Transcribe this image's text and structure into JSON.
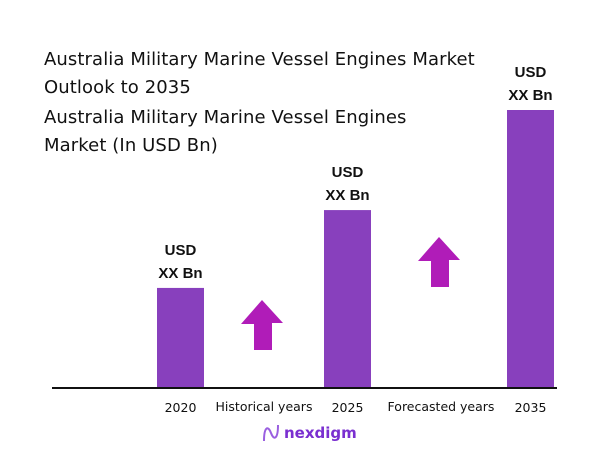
{
  "title_lines": [
    "Australia Military Marine Vessel Engines Market",
    "Outlook to 2035"
  ],
  "subtitle_lines": [
    "Australia Military Marine Vessel Engines",
    "Market (In USD Bn)"
  ],
  "chart_data": {
    "type": "bar",
    "title": "Australia Military Marine Vessel Engines Market Outlook to 2035",
    "subtitle": "Australia Military Marine Vessel Engines Market (In USD Bn)",
    "categories": [
      "2020",
      "2025",
      "2035"
    ],
    "values_relative_percent": [
      36,
      64,
      100
    ],
    "data_labels": [
      [
        "USD",
        "XX Bn"
      ],
      [
        "USD",
        "XX Bn"
      ],
      [
        "USD",
        "XX Bn"
      ]
    ],
    "annotations": [
      "Historical years",
      "Forecasted years"
    ],
    "bar_color": "#8840bd",
    "arrow_color": "#b01cb8",
    "grid": false,
    "legend": "none"
  },
  "logo": {
    "text": "nexdigm"
  }
}
